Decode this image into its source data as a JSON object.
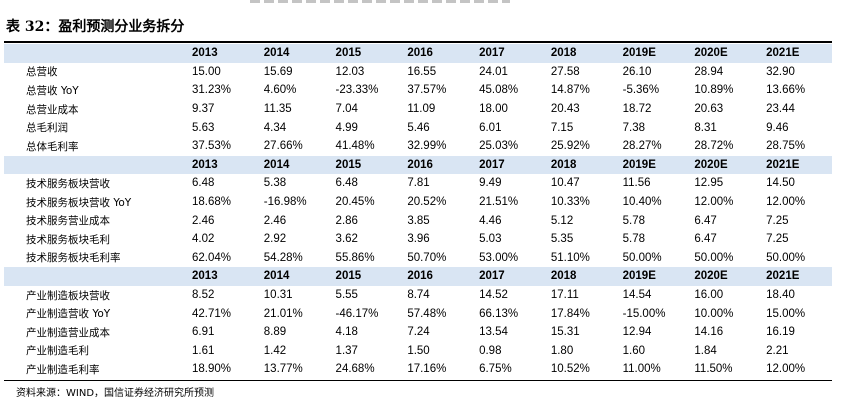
{
  "title": "表 32：盈利预测分业务拆分",
  "years": [
    "2013",
    "2014",
    "2015",
    "2016",
    "2017",
    "2018",
    "2019E",
    "2020E",
    "2021E"
  ],
  "sections": [
    {
      "rows": [
        {
          "label": "总营收",
          "values": [
            "15.00",
            "15.69",
            "12.03",
            "16.55",
            "24.01",
            "27.58",
            "26.10",
            "28.94",
            "32.90"
          ]
        },
        {
          "label": "总营收 YoY",
          "values": [
            "31.23%",
            "4.60%",
            "-23.33%",
            "37.57%",
            "45.08%",
            "14.87%",
            "-5.36%",
            "10.89%",
            "13.66%"
          ]
        },
        {
          "label": "总营业成本",
          "values": [
            "9.37",
            "11.35",
            "7.04",
            "11.09",
            "18.00",
            "20.43",
            "18.72",
            "20.63",
            "23.44"
          ]
        },
        {
          "label": "总毛利润",
          "values": [
            "5.63",
            "4.34",
            "4.99",
            "5.46",
            "6.01",
            "7.15",
            "7.38",
            "8.31",
            "9.46"
          ]
        },
        {
          "label": "总体毛利率",
          "values": [
            "37.53%",
            "27.66%",
            "41.48%",
            "32.99%",
            "25.03%",
            "25.92%",
            "28.27%",
            "28.72%",
            "28.75%"
          ]
        }
      ]
    },
    {
      "rows": [
        {
          "label": "技术服务板块营收",
          "values": [
            "6.48",
            "5.38",
            "6.48",
            "7.81",
            "9.49",
            "10.47",
            "11.56",
            "12.95",
            "14.50"
          ]
        },
        {
          "label": "技术服务板块营收 YoY",
          "values": [
            "18.68%",
            "-16.98%",
            "20.45%",
            "20.52%",
            "21.51%",
            "10.33%",
            "10.40%",
            "12.00%",
            "12.00%"
          ]
        },
        {
          "label": "技术服务营业成本",
          "values": [
            "2.46",
            "2.46",
            "2.86",
            "3.85",
            "4.46",
            "5.12",
            "5.78",
            "6.47",
            "7.25"
          ]
        },
        {
          "label": "技术服务板块毛利",
          "values": [
            "4.02",
            "2.92",
            "3.62",
            "3.96",
            "5.03",
            "5.35",
            "5.78",
            "6.47",
            "7.25"
          ]
        },
        {
          "label": "技术服务板块毛利率",
          "values": [
            "62.04%",
            "54.28%",
            "55.86%",
            "50.70%",
            "53.00%",
            "51.10%",
            "50.00%",
            "50.00%",
            "50.00%"
          ]
        }
      ]
    },
    {
      "rows": [
        {
          "label": "产业制造板块营收",
          "values": [
            "8.52",
            "10.31",
            "5.55",
            "8.74",
            "14.52",
            "17.11",
            "14.54",
            "16.00",
            "18.40"
          ]
        },
        {
          "label": "产业制造营收 YoY",
          "values": [
            "42.71%",
            "21.01%",
            "-46.17%",
            "57.48%",
            "66.13%",
            "17.84%",
            "-15.00%",
            "10.00%",
            "15.00%"
          ]
        },
        {
          "label": "产业制造营业成本",
          "values": [
            "6.91",
            "8.89",
            "4.18",
            "7.24",
            "13.54",
            "15.31",
            "12.94",
            "14.16",
            "16.19"
          ]
        },
        {
          "label": "产业制造毛利",
          "values": [
            "1.61",
            "1.42",
            "1.37",
            "1.50",
            "0.98",
            "1.80",
            "1.60",
            "1.84",
            "2.21"
          ]
        },
        {
          "label": "产业制造毛利率",
          "values": [
            "18.90%",
            "13.77%",
            "24.68%",
            "17.16%",
            "6.75%",
            "10.52%",
            "11.00%",
            "11.50%",
            "12.00%"
          ]
        }
      ]
    }
  ],
  "source": "资料来源：WIND，国信证券经济研究所预测",
  "colors": {
    "header_bg": "#d9e5f3",
    "rule": "#000000"
  }
}
